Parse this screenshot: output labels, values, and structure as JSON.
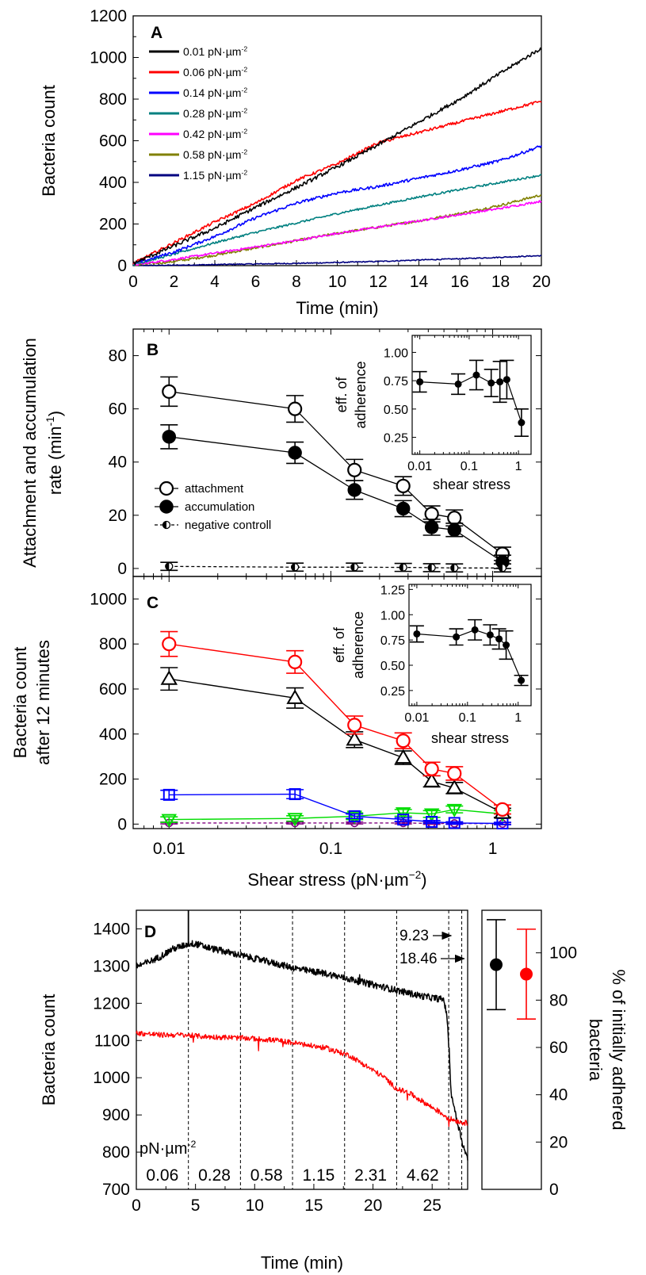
{
  "chart_data": [
    {
      "panel": "A",
      "type": "line",
      "xlabel": "Time (min)",
      "ylabel": "Bacteria count",
      "xlim": [
        0,
        20
      ],
      "ylim": [
        0,
        1200
      ],
      "xticks": [
        0,
        2,
        4,
        6,
        8,
        10,
        12,
        14,
        16,
        18,
        20
      ],
      "yticks": [
        0,
        200,
        400,
        600,
        800,
        1000,
        1200
      ],
      "legend_position": "top-left",
      "series": [
        {
          "name": "0.01 pN·µm",
          "superscript": "-2",
          "color": "#000000",
          "x": [
            0,
            2,
            4,
            6,
            8,
            10,
            12,
            14,
            16,
            18,
            20
          ],
          "y": [
            10,
            95,
            180,
            280,
            375,
            475,
            580,
            690,
            800,
            925,
            1045
          ]
        },
        {
          "name": "0.06 pN·µm",
          "superscript": "-2",
          "color": "#ff0000",
          "x": [
            0,
            2,
            4,
            6,
            8,
            10,
            12,
            14,
            16,
            18,
            20
          ],
          "y": [
            10,
            110,
            210,
            300,
            410,
            490,
            590,
            640,
            690,
            740,
            790
          ]
        },
        {
          "name": "0.14 pN·µm",
          "superscript": "-2",
          "color": "#0000ff",
          "x": [
            0,
            2,
            4,
            6,
            8,
            10,
            12,
            14,
            16,
            18,
            20
          ],
          "y": [
            8,
            65,
            140,
            230,
            300,
            350,
            380,
            420,
            460,
            505,
            575
          ]
        },
        {
          "name": "0.28 pN·µm",
          "superscript": "-2",
          "color": "#008080",
          "x": [
            0,
            2,
            4,
            6,
            8,
            10,
            12,
            14,
            16,
            18,
            20
          ],
          "y": [
            5,
            55,
            110,
            160,
            205,
            250,
            290,
            330,
            365,
            400,
            435
          ]
        },
        {
          "name": "0.42 pN·µm",
          "superscript": "-2",
          "color": "#ff00ff",
          "x": [
            0,
            2,
            4,
            6,
            8,
            10,
            12,
            14,
            16,
            18,
            20
          ],
          "y": [
            3,
            30,
            60,
            90,
            120,
            155,
            185,
            215,
            245,
            275,
            310
          ]
        },
        {
          "name": "0.58 pN·µm",
          "superscript": "-2",
          "color": "#808000",
          "x": [
            0,
            2,
            4,
            6,
            8,
            10,
            12,
            14,
            16,
            18,
            20
          ],
          "y": [
            2,
            20,
            50,
            85,
            120,
            155,
            185,
            215,
            250,
            290,
            340
          ]
        },
        {
          "name": "1.15 pN·µm",
          "superscript": "-2",
          "color": "#000080",
          "x": [
            0,
            2,
            4,
            6,
            8,
            10,
            12,
            14,
            16,
            18,
            20
          ],
          "y": [
            0,
            2,
            5,
            8,
            11,
            15,
            20,
            27,
            33,
            40,
            48
          ]
        }
      ]
    },
    {
      "panel": "B",
      "type": "scatter",
      "ylabel": "Attachment and accumulation",
      "ylabel2": "rate (min",
      "ylabel2_sup": "-1",
      "ylabel2_end": ")",
      "xscale": "log",
      "xlim": [
        0.006,
        2
      ],
      "ylim": [
        -3,
        90
      ],
      "yticks": [
        0,
        20,
        40,
        60,
        80
      ],
      "legend_position": "middle-left",
      "series": [
        {
          "name": "attachment",
          "marker": "open-circle",
          "x": [
            0.01,
            0.06,
            0.14,
            0.28,
            0.42,
            0.58,
            1.15
          ],
          "y": [
            66.5,
            60,
            37,
            31,
            20.5,
            19,
            5.5
          ],
          "err": [
            5.5,
            5,
            4,
            3.5,
            3,
            3,
            2.5
          ]
        },
        {
          "name": "accumulation",
          "marker": "filled-circle",
          "x": [
            0.01,
            0.06,
            0.14,
            0.28,
            0.42,
            0.58,
            1.15
          ],
          "y": [
            49.5,
            43.5,
            29.5,
            22.5,
            15.5,
            14.5,
            2.5
          ],
          "err": [
            4.5,
            4,
            3.5,
            3,
            3,
            2.5,
            2.5
          ]
        },
        {
          "name": "negative controll",
          "marker": "half-circle",
          "dashed": true,
          "x": [
            0.01,
            0.06,
            0.14,
            0.28,
            0.42,
            0.58,
            1.15
          ],
          "y": [
            0.8,
            0.5,
            0.5,
            0.4,
            0.3,
            0.2,
            0.2
          ],
          "err": [
            1.5,
            1.5,
            1.5,
            1.5,
            1.5,
            1.5,
            1.5
          ]
        }
      ],
      "inset": {
        "xlabel": "shear stress",
        "ylabel": "eff. of",
        "ylabel2": "adherence",
        "xscale": "log",
        "xlim": [
          0.007,
          1.8
        ],
        "ylim": [
          0.1,
          1.15
        ],
        "yticks": [
          0.25,
          0.5,
          0.75,
          1.0
        ],
        "ytick_labels": [
          "0.25",
          "0.50",
          "0.75",
          "1.00"
        ],
        "xticks": [
          0.01,
          0.1,
          1
        ],
        "xtick_labels": [
          "0.01",
          "0.1",
          "1"
        ],
        "x": [
          0.01,
          0.06,
          0.14,
          0.28,
          0.42,
          0.58,
          1.15
        ],
        "y": [
          0.74,
          0.72,
          0.8,
          0.73,
          0.74,
          0.76,
          0.38
        ],
        "err": [
          0.09,
          0.09,
          0.13,
          0.12,
          0.18,
          0.17,
          0.12
        ]
      }
    },
    {
      "panel": "C",
      "type": "scatter",
      "xlabel": "Shear stress (pN·µm",
      "xlabel_sup": "−2",
      "xlabel_end": ")",
      "ylabel": "Bacteria count",
      "ylabel2": "after 12 minutes",
      "xscale": "log",
      "xlim": [
        0.006,
        2
      ],
      "ylim": [
        -20,
        1100
      ],
      "yticks": [
        0,
        200,
        400,
        600,
        800,
        1000
      ],
      "xticks": [
        0.01,
        0.1,
        1
      ],
      "xtick_labels": [
        "0.01",
        "0.1",
        "1"
      ],
      "series": [
        {
          "color": "#ff0000",
          "marker": "open-circle",
          "x": [
            0.01,
            0.06,
            0.14,
            0.28,
            0.42,
            0.58,
            1.15
          ],
          "y": [
            800,
            720,
            440,
            370,
            245,
            225,
            65
          ],
          "err": [
            55,
            50,
            40,
            35,
            30,
            30,
            20
          ]
        },
        {
          "color": "#000000",
          "marker": "open-triangle-up",
          "x": [
            0.01,
            0.06,
            0.14,
            0.28,
            0.42,
            0.58,
            1.15
          ],
          "y": [
            645,
            560,
            375,
            295,
            190,
            160,
            50
          ],
          "err": [
            50,
            45,
            35,
            30,
            25,
            25,
            20
          ]
        },
        {
          "color": "#0000ff",
          "marker": "open-square",
          "x": [
            0.01,
            0.06,
            0.14,
            0.28,
            0.42,
            0.58,
            1.15
          ],
          "y": [
            130,
            133,
            35,
            20,
            10,
            5,
            3
          ],
          "err": [
            20,
            20,
            10,
            8,
            6,
            5,
            5
          ]
        },
        {
          "color": "#00dd00",
          "marker": "open-triangle-down",
          "x": [
            0.01,
            0.06,
            0.14,
            0.28,
            0.42,
            0.58,
            1.15
          ],
          "y": [
            20,
            25,
            35,
            50,
            45,
            65,
            45
          ],
          "err": [
            12,
            12,
            15,
            15,
            15,
            15,
            15
          ]
        },
        {
          "color": "#800080",
          "marker": "open-circle-small",
          "dashed": true,
          "x": [
            0.01,
            0.06,
            0.14,
            0.28,
            0.42,
            0.58,
            1.15
          ],
          "y": [
            5,
            5,
            5,
            5,
            3,
            3,
            2
          ],
          "err": [
            4,
            4,
            4,
            4,
            4,
            4,
            4
          ]
        }
      ],
      "inset": {
        "xlabel": "shear stress",
        "ylabel": "eff. of",
        "ylabel2": "adherence",
        "xscale": "log",
        "xlim": [
          0.007,
          1.8
        ],
        "ylim": [
          0.1,
          1.3
        ],
        "yticks": [
          0.25,
          0.5,
          0.75,
          1.0,
          1.25
        ],
        "ytick_labels": [
          "0.25",
          "0.50",
          "0.75",
          "1.00",
          "1.25"
        ],
        "xticks": [
          0.01,
          0.1,
          1
        ],
        "xtick_labels": [
          "0.01",
          "0.1",
          "1"
        ],
        "x": [
          0.01,
          0.06,
          0.14,
          0.28,
          0.42,
          0.58,
          1.15
        ],
        "y": [
          0.81,
          0.78,
          0.85,
          0.8,
          0.76,
          0.7,
          0.35
        ],
        "err": [
          0.08,
          0.08,
          0.1,
          0.1,
          0.1,
          0.14,
          0.05
        ]
      }
    },
    {
      "panel": "D",
      "type": "line",
      "xlabel": "Time (min)",
      "ylabel": "Bacteria count",
      "xlim": [
        0,
        28
      ],
      "ylim": [
        700,
        1450
      ],
      "xticks": [
        0,
        5,
        10,
        15,
        20,
        25
      ],
      "yticks": [
        700,
        800,
        900,
        1000,
        1100,
        1200,
        1300,
        1400
      ],
      "series": [
        {
          "color": "#000000",
          "x": [
            0,
            1,
            2,
            3,
            4,
            4.4,
            5,
            6,
            8,
            10,
            12,
            14,
            16,
            18,
            20,
            22,
            24,
            26,
            26.3,
            26.6,
            27,
            27.3,
            27.6,
            28
          ],
          "y": [
            1300,
            1310,
            1325,
            1345,
            1355,
            1360,
            1360,
            1350,
            1335,
            1320,
            1305,
            1290,
            1280,
            1265,
            1250,
            1235,
            1220,
            1210,
            1150,
            960,
            900,
            860,
            820,
            780
          ]
        },
        {
          "color": "#ff0000",
          "x": [
            0,
            2,
            4,
            6,
            8,
            10,
            12,
            14,
            16,
            18,
            20,
            21,
            22,
            23,
            24,
            25,
            26,
            26.5,
            27,
            27.5,
            28
          ],
          "y": [
            1120,
            1115,
            1115,
            1110,
            1108,
            1105,
            1100,
            1090,
            1080,
            1060,
            1020,
            1000,
            970,
            960,
            940,
            920,
            900,
            890,
            885,
            880,
            878
          ]
        }
      ],
      "segments": {
        "boundaries": [
          4.4,
          8.8,
          13.2,
          17.6,
          22.0,
          26.4,
          27.5
        ],
        "labels": [
          "0.06",
          "0.28",
          "0.58",
          "1.15",
          "2.31",
          "4.62"
        ]
      },
      "unit_label": "pN·µm",
      "unit_sup": "-2",
      "arrow_labels": [
        "9.23",
        "18.46"
      ],
      "right_panel": {
        "ylabel": "% of initially adhered",
        "ylabel2": "bacteria",
        "ylim": [
          0,
          118
        ],
        "yticks": [
          0,
          20,
          40,
          60,
          80,
          100
        ],
        "points": [
          {
            "color": "#000000",
            "value": 95,
            "err": 19
          },
          {
            "color": "#ff0000",
            "value": 91,
            "err": 19
          }
        ]
      }
    }
  ]
}
